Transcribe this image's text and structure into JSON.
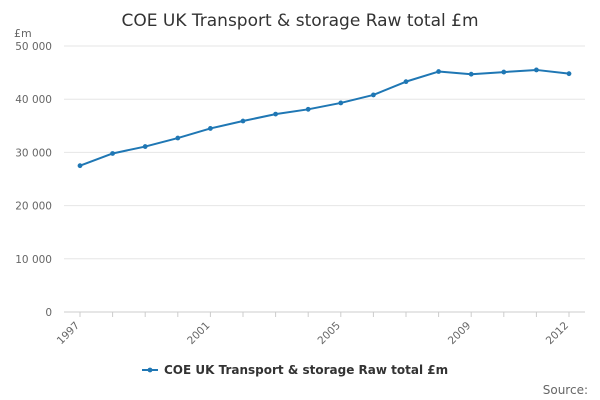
{
  "chart_data": {
    "type": "line",
    "title": "COE UK Transport & storage Raw total £m",
    "ylabel": "£m",
    "xlabel": "",
    "ylim": [
      0,
      50000
    ],
    "y_ticks": [
      0,
      10000,
      20000,
      30000,
      40000,
      50000
    ],
    "y_tick_labels": [
      "0",
      "10 000",
      "20 000",
      "30 000",
      "40 000",
      "50 000"
    ],
    "x_ticks": [
      1997,
      2001,
      2005,
      2009,
      2012
    ],
    "x_tick_labels": [
      "1997",
      "2001",
      "2005",
      "2009",
      "2012"
    ],
    "grid": true,
    "legend_position": "bottom",
    "series": [
      {
        "name": "COE UK Transport & storage Raw total £m",
        "color": "#1f77b4",
        "x": [
          1997,
          1998,
          1999,
          2000,
          2001,
          2002,
          2003,
          2004,
          2005,
          2006,
          2007,
          2008,
          2009,
          2010,
          2011,
          2012
        ],
        "values": [
          27500,
          29800,
          31100,
          32700,
          34500,
          35900,
          37200,
          38100,
          39300,
          40800,
          43300,
          45200,
          44700,
          45100,
          45500,
          44800
        ]
      }
    ],
    "source_label": "Source:"
  }
}
